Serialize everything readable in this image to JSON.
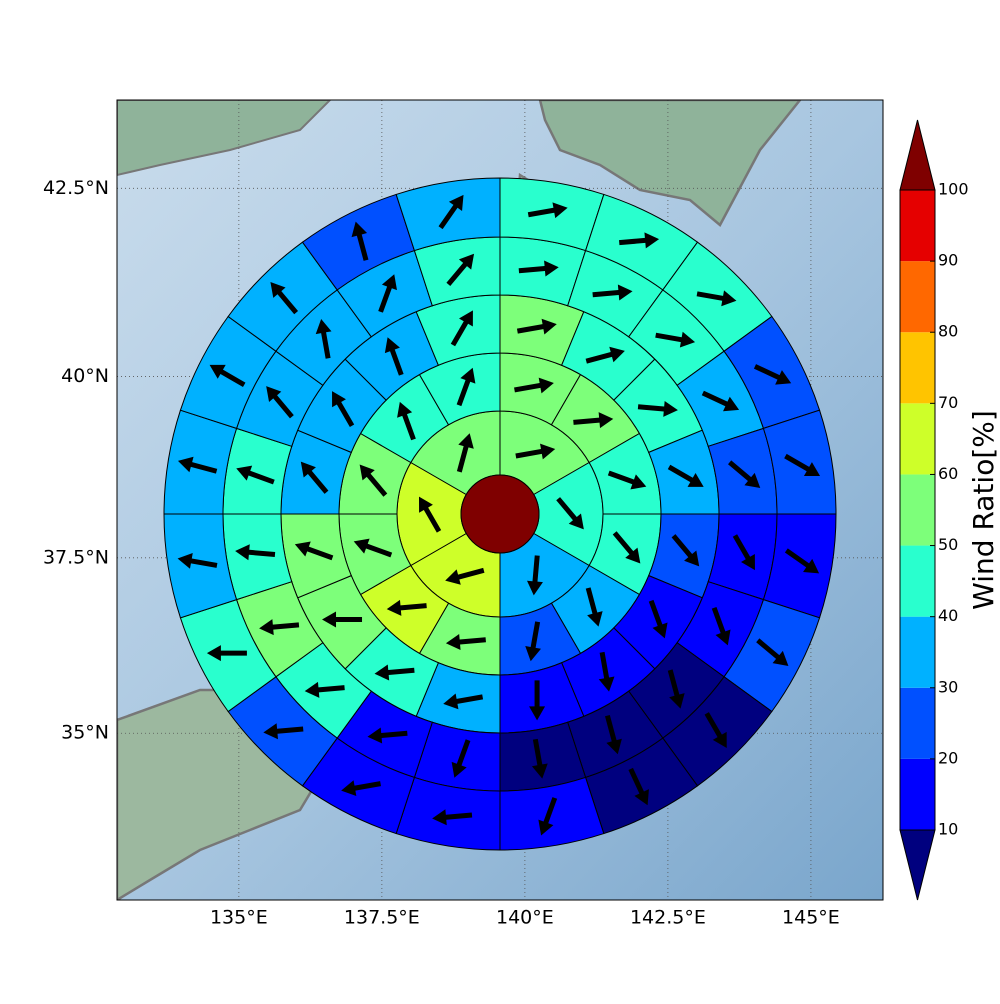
{
  "chart_data": {
    "type": "polar-sectors",
    "xlim": [
      132.87,
      146.26
    ],
    "ylim": [
      32.55,
      43.64
    ],
    "xticks": [
      {
        "value": 135,
        "label": "135°E"
      },
      {
        "value": 137.5,
        "label": "137.5°E"
      },
      {
        "value": 140,
        "label": "140°E"
      },
      {
        "value": 142.5,
        "label": "142.5°E"
      },
      {
        "value": 145,
        "label": "145°E"
      }
    ],
    "yticks": [
      {
        "value": 35,
        "label": "35°N"
      },
      {
        "value": 37.5,
        "label": "37.5°N"
      },
      {
        "value": 40,
        "label": "40°N"
      },
      {
        "value": 42.5,
        "label": "42.5°N"
      }
    ],
    "grid": true,
    "center_value": 100,
    "rings": [
      {
        "values": [
          55,
          45,
          35,
          65,
          65,
          55
        ],
        "directions": [
          80,
          140,
          185,
          255,
          330,
          15
        ]
      },
      {
        "values": [
          55,
          52,
          45,
          45,
          35,
          25,
          55,
          65,
          55,
          52,
          45,
          45
        ],
        "directions": [
          80,
          85,
          110,
          140,
          165,
          190,
          265,
          265,
          290,
          320,
          340,
          20
        ]
      },
      {
        "values": [
          55,
          45,
          45,
          35,
          25,
          15,
          15,
          15,
          35,
          45,
          55,
          55,
          35,
          35,
          35,
          45
        ],
        "directions": [
          80,
          75,
          95,
          120,
          140,
          160,
          170,
          180,
          260,
          265,
          270,
          290,
          320,
          330,
          340,
          30
        ]
      },
      {
        "values": [
          45,
          45,
          45,
          35,
          25,
          15,
          15,
          5,
          5,
          5,
          15,
          15,
          45,
          55,
          45,
          45,
          35,
          35,
          35,
          45
        ],
        "directions": [
          85,
          85,
          100,
          115,
          130,
          150,
          160,
          165,
          165,
          170,
          200,
          265,
          265,
          265,
          275,
          290,
          320,
          350,
          20,
          40
        ]
      },
      {
        "values": [
          45,
          45,
          45,
          25,
          25,
          15,
          25,
          5,
          5,
          15,
          15,
          15,
          25,
          45,
          35,
          35,
          35,
          35,
          25,
          35
        ],
        "directions": [
          80,
          85,
          100,
          115,
          120,
          125,
          130,
          150,
          155,
          200,
          265,
          260,
          265,
          270,
          280,
          285,
          300,
          320,
          345,
          35
        ]
      }
    ],
    "colorbar": {
      "label": "Wind Ratio[%]",
      "ticks": [
        10,
        20,
        30,
        40,
        50,
        60,
        70,
        80,
        90,
        100
      ],
      "colors": [
        "#00007f",
        "#0000ff",
        "#0050ff",
        "#00b1ff",
        "#29ffce",
        "#7dff7a",
        "#ceff29",
        "#ffc400",
        "#ff6800",
        "#e50000",
        "#7f0000"
      ]
    }
  }
}
